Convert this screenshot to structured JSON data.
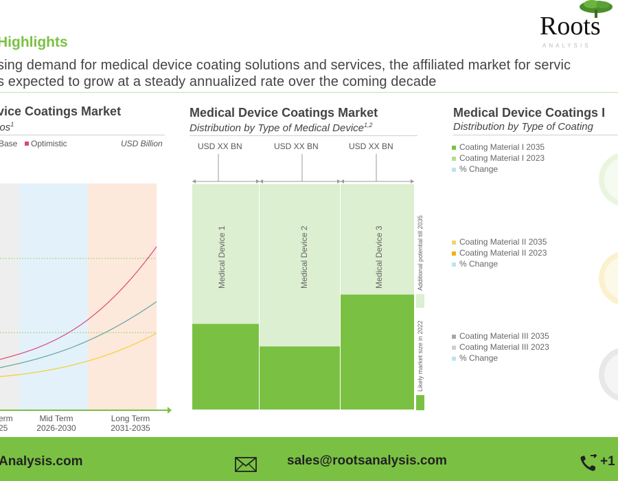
{
  "header": {
    "section_title": "Highlights",
    "subtitle_line1": "sing demand for medical device coating solutions and services, the affiliated market for servic",
    "subtitle_line2": "s expected to grow at a steady annualized rate over the coming decade",
    "logo_text": "Roots",
    "logo_tagline": "ANALYSIS"
  },
  "panel_left": {
    "title": "vice Coatings Market",
    "subtitle": "ios",
    "subtitle_sup": "1",
    "legend_base": "Base",
    "legend_optimistic": "Optimistic",
    "units": "USD Billion",
    "period_labels": [
      {
        "name": "erm",
        "years": "25"
      },
      {
        "name": "Mid Term",
        "years": "2026-2030"
      },
      {
        "name": "Long Term",
        "years": "2031-2035"
      }
    ],
    "colors": {
      "optimistic": "#d9487a",
      "base": "#5fa69c",
      "conservative": "#f2d22e"
    }
  },
  "panel_middle": {
    "title": "Medical Device Coatings Market",
    "subtitle": "Distribution by Type of Medical Device",
    "subtitle_sup": "1,2",
    "usd_labels": [
      "USD XX BN",
      "USD XX BN",
      "USD XX BN"
    ],
    "devices": [
      "Medical Device 1",
      "Medical Device 2",
      "Medical Device 3"
    ],
    "device_likely_share": [
      0.38,
      0.28,
      0.51
    ],
    "legend_additional": "Additional potential till 2035",
    "legend_likely": "Likely market size in 2022",
    "colors": {
      "dark": "#7ac143",
      "light": "#dcefd0"
    }
  },
  "panel_right": {
    "title": "Medical Device Coatings I",
    "subtitle": "Distribution by Type of Coating",
    "groups": [
      {
        "items": [
          {
            "label": "Coating Material I 2035",
            "color": "#7ac143"
          },
          {
            "label": "Coating Material I 2023",
            "color": "#b5dc8f"
          },
          {
            "label": "% Change",
            "color": "#bde3f2"
          }
        ]
      },
      {
        "items": [
          {
            "label": "Coating Material II 2035",
            "color": "#f2d46b"
          },
          {
            "label": "Coating Material II 2023",
            "color": "#f0b400"
          },
          {
            "label": "% Change",
            "color": "#bde3f2"
          }
        ]
      },
      {
        "items": [
          {
            "label": "Coating Material III 2035",
            "color": "#a6a6a6"
          },
          {
            "label": "Coating Material III 2023",
            "color": "#cfcfcf"
          },
          {
            "label": "% Change",
            "color": "#bde3f2"
          }
        ]
      }
    ]
  },
  "footer": {
    "website": "Analysis.com",
    "email": "sales@rootsanalysis.com",
    "phone": "+1"
  }
}
